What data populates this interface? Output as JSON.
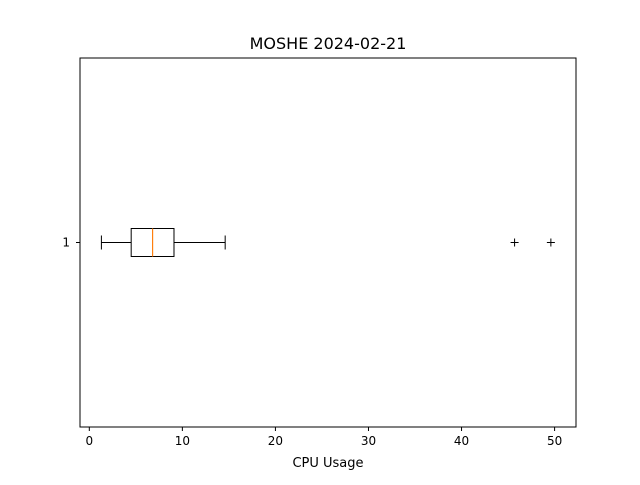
{
  "chart_data": {
    "type": "boxplot",
    "orientation": "horizontal",
    "title": "MOSHE 2024-02-21",
    "xlabel": "CPU Usage",
    "ylabel": "",
    "xlim": [
      -1,
      52.3
    ],
    "ylim": [
      0.5,
      1.5
    ],
    "xticks": [
      0,
      10,
      20,
      30,
      40,
      50
    ],
    "yticks": [
      1
    ],
    "grid": false,
    "boxes": [
      {
        "category": "1",
        "whisker_low": 1.3,
        "q1": 4.5,
        "median": 6.8,
        "q3": 9.1,
        "whisker_high": 14.6,
        "outliers": [
          45.7,
          49.6
        ]
      }
    ],
    "colors": {
      "box": "#000000",
      "median": "#ff7f0e",
      "outlier": "#000000"
    }
  }
}
